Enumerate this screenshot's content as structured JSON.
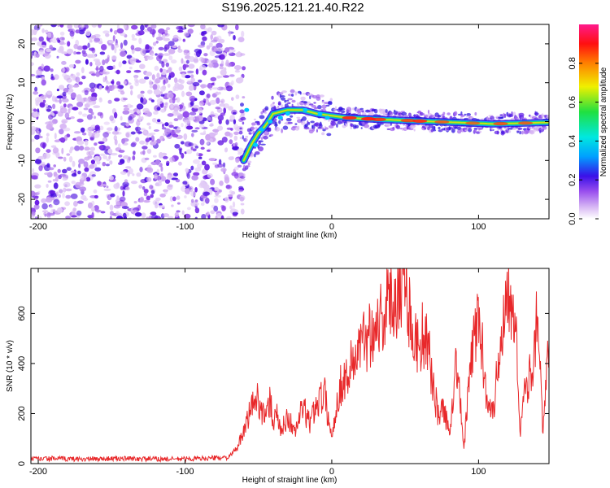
{
  "title": "S196.2025.121.21.40.R22",
  "colors": {
    "snr_line": "#e8282a",
    "spectrogram_cmap": [
      "#ffffff",
      "#c8a0f0",
      "#7a28e8",
      "#2a10e0",
      "#00c8ff",
      "#20e060",
      "#f0d000",
      "#ff1a1a",
      "#ff1a8c"
    ]
  },
  "chart_data": [
    {
      "type": "heatmap",
      "xlabel": "Height of straight line (km)",
      "ylabel": "Frequency (Hz)",
      "xlim": [
        -205,
        148
      ],
      "ylim": [
        -25,
        25
      ],
      "xticks": [
        -200,
        -100,
        0,
        100
      ],
      "yticks": [
        -20,
        -10,
        0,
        10,
        20
      ],
      "colorbar": {
        "label": "Normalized spectral amplitude",
        "range": [
          0.0,
          1.0
        ],
        "ticks": [
          "0.0",
          "0.2",
          "0.4",
          "0.6",
          "0.8"
        ]
      },
      "features": {
        "noise_region_x": [
          -205,
          -60
        ],
        "wave_band": [
          [
            -60,
            -10
          ],
          [
            -55,
            -6
          ],
          [
            -50,
            -3
          ],
          [
            -45,
            -1
          ],
          [
            -40,
            2
          ],
          [
            -30,
            3
          ],
          [
            -20,
            3
          ],
          [
            -10,
            2
          ],
          [
            0,
            1.5
          ],
          [
            10,
            1
          ],
          [
            30,
            0.6
          ],
          [
            50,
            0.3
          ],
          [
            70,
            0
          ],
          [
            90,
            -0.3
          ],
          [
            110,
            -0.6
          ],
          [
            130,
            -0.4
          ],
          [
            148,
            -0.2
          ]
        ]
      }
    },
    {
      "type": "line",
      "xlabel": "Height of straight line (km)",
      "ylabel": "SNR (10 * v/v)",
      "xlim": [
        -205,
        148
      ],
      "ylim": [
        0,
        780
      ],
      "xticks": [
        -200,
        -100,
        0,
        100
      ],
      "yticks": [
        0,
        200,
        400,
        600
      ],
      "series": [
        {
          "x": [
            -205,
            -190,
            -170,
            -150,
            -130,
            -110,
            -90,
            -70,
            -65,
            -60,
            -55,
            -50,
            -45,
            -42,
            -40,
            -38,
            -35,
            -30,
            -25,
            -20,
            -15,
            -10,
            -5,
            0,
            5,
            10,
            15,
            20,
            25,
            30,
            35,
            40,
            45,
            50,
            55,
            58,
            62,
            66,
            70,
            73,
            76,
            80,
            85,
            90,
            95,
            100,
            105,
            110,
            115,
            120,
            125,
            128,
            132,
            136,
            140,
            144,
            148
          ],
          "values": [
            18,
            20,
            18,
            20,
            19,
            18,
            20,
            25,
            60,
            120,
            230,
            260,
            170,
            260,
            150,
            230,
            120,
            190,
            120,
            230,
            160,
            250,
            280,
            100,
            300,
            350,
            420,
            470,
            520,
            560,
            600,
            640,
            700,
            760,
            520,
            470,
            520,
            440,
            280,
            180,
            230,
            120,
            420,
            60,
            420,
            600,
            300,
            200,
            500,
            720,
            640,
            120,
            300,
            360,
            620,
            120,
            480
          ]
        }
      ]
    }
  ]
}
